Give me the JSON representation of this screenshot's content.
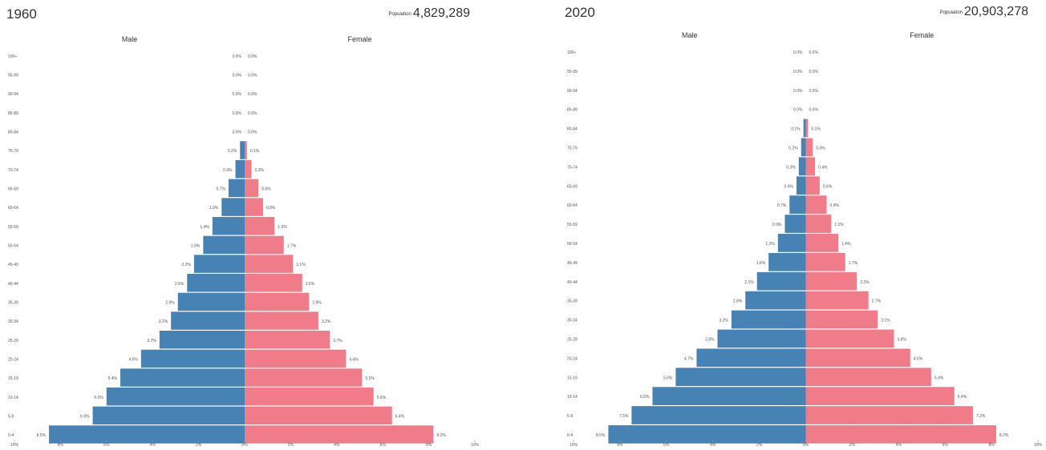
{
  "chart_data": [
    {
      "type": "bar",
      "title": "1960",
      "population_label": "Population",
      "population": "4,829,289",
      "male_label": "Male",
      "female_label": "Female",
      "categories": [
        "100+",
        "95-99",
        "90-94",
        "85-89",
        "80-84",
        "75-79",
        "70-74",
        "65-69",
        "60-64",
        "55-59",
        "50-54",
        "45-49",
        "40-44",
        "35-39",
        "30-34",
        "25-29",
        "20-24",
        "15-19",
        "10-14",
        "5-9",
        "0-4"
      ],
      "series": [
        {
          "name": "Male",
          "color": "#4682b4",
          "values": [
            0.0,
            0.0,
            0.0,
            0.0,
            0.0,
            0.2,
            0.4,
            0.7,
            1.0,
            1.4,
            1.8,
            2.2,
            2.5,
            2.9,
            3.2,
            3.7,
            4.5,
            5.4,
            6.0,
            6.6,
            8.5
          ],
          "labels": [
            "0.0%",
            "0.0%",
            "0.0%",
            "0.0%",
            "0.0%",
            "0.2%",
            "0.4%",
            "0.7%",
            "1.0%",
            "1.4%",
            "1.8%",
            "2.2%",
            "2.5%",
            "2.9%",
            "3.2%",
            "3.7%",
            "4.5%",
            "5.4%",
            "6.0%",
            "6.6%",
            "8.5%"
          ]
        },
        {
          "name": "Female",
          "color": "#f07c8a",
          "values": [
            0.0,
            0.0,
            0.0,
            0.0,
            0.0,
            0.1,
            0.3,
            0.6,
            0.8,
            1.3,
            1.7,
            2.1,
            2.5,
            2.8,
            3.2,
            3.7,
            4.4,
            5.1,
            5.6,
            6.4,
            8.2
          ],
          "labels": [
            "0.0%",
            "0.0%",
            "0.0%",
            "0.0%",
            "0.0%",
            "0.1%",
            "0.3%",
            "0.6%",
            "0.8%",
            "1.3%",
            "1.7%",
            "2.1%",
            "2.5%",
            "2.8%",
            "3.2%",
            "3.7%",
            "4.4%",
            "5.1%",
            "5.6%",
            "6.4%",
            "8.2%"
          ]
        }
      ],
      "xlim": [
        -10,
        10
      ],
      "x_ticks": [
        "10%",
        "8%",
        "6%",
        "4%",
        "2%",
        "0%",
        "2%",
        "4%",
        "6%",
        "8%",
        "10%"
      ]
    },
    {
      "type": "bar",
      "title": "2020",
      "population_label": "Population",
      "population": "20,903,278",
      "male_label": "Male",
      "female_label": "Female",
      "categories": [
        "100+",
        "95-99",
        "90-94",
        "85-89",
        "80-84",
        "75-79",
        "70-74",
        "65-69",
        "60-64",
        "55-59",
        "50-54",
        "45-49",
        "40-44",
        "35-39",
        "30-34",
        "25-29",
        "20-24",
        "15-19",
        "10-14",
        "5-9",
        "0-4"
      ],
      "series": [
        {
          "name": "Male",
          "color": "#4682b4",
          "values": [
            0.0,
            0.0,
            0.0,
            0.0,
            0.1,
            0.2,
            0.3,
            0.4,
            0.7,
            0.9,
            1.2,
            1.6,
            2.1,
            2.6,
            3.2,
            3.8,
            4.7,
            5.6,
            6.6,
            7.5,
            8.5
          ],
          "labels": [
            "0.0%",
            "0.0%",
            "0.0%",
            "0.0%",
            "0.1%",
            "0.2%",
            "0.3%",
            "0.4%",
            "0.7%",
            "0.9%",
            "1.2%",
            "1.6%",
            "2.1%",
            "2.6%",
            "3.2%",
            "3.8%",
            "4.7%",
            "5.6%",
            "6.6%",
            "7.5%",
            "8.5%"
          ]
        },
        {
          "name": "Female",
          "color": "#f07c8a",
          "values": [
            0.0,
            0.0,
            0.0,
            0.0,
            0.1,
            0.3,
            0.4,
            0.6,
            0.9,
            1.1,
            1.4,
            1.7,
            2.2,
            2.7,
            3.1,
            3.8,
            4.5,
            5.4,
            6.4,
            7.2,
            8.2
          ],
          "labels": [
            "0.0%",
            "0.0%",
            "0.0%",
            "0.0%",
            "0.1%",
            "0.3%",
            "0.4%",
            "0.6%",
            "0.9%",
            "1.1%",
            "1.4%",
            "1.7%",
            "2.2%",
            "2.7%",
            "3.1%",
            "3.8%",
            "4.5%",
            "5.4%",
            "6.4%",
            "7.2%",
            "8.2%"
          ]
        }
      ],
      "xlim": [
        -10,
        10
      ],
      "x_ticks": [
        "10%",
        "8%",
        "6%",
        "4%",
        "2%",
        "0%",
        "2%",
        "4%",
        "6%",
        "8%",
        "10%"
      ]
    }
  ]
}
